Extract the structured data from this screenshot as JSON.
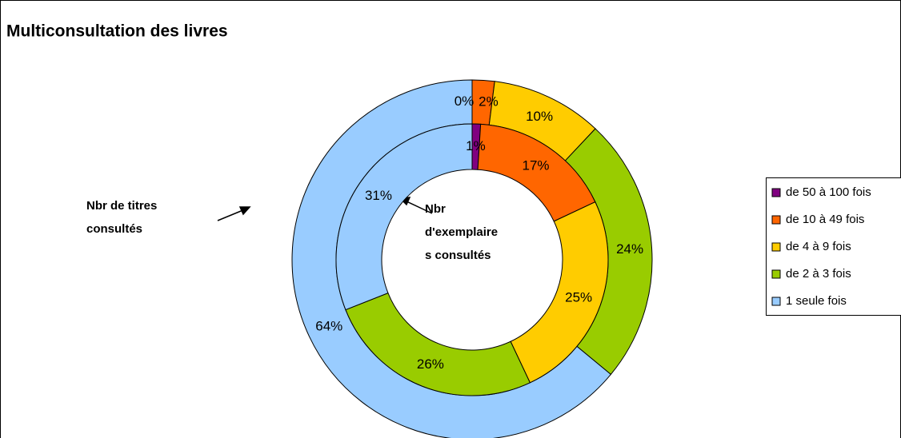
{
  "chart_data": {
    "type": "doughnut",
    "title": "Multiconsultation des livres",
    "categories": [
      "de 50 à 100 fois",
      "de 10 à 49 fois",
      "de 4 à 9 fois",
      "de 2 à 3 fois",
      "1 seule fois"
    ],
    "colors": [
      "#800080",
      "#ff6600",
      "#ffcc00",
      "#99cc00",
      "#99ccff"
    ],
    "series": [
      {
        "ring": "outer",
        "values": [
          0,
          2,
          10,
          24,
          64
        ],
        "value_labels": [
          "0%",
          "2%",
          "10%",
          "24%",
          "64%"
        ]
      },
      {
        "ring": "inner",
        "values": [
          1,
          17,
          25,
          26,
          31
        ],
        "value_labels": [
          "1%",
          "17%",
          "25%",
          "26%",
          "31%"
        ]
      }
    ],
    "annotations": [
      {
        "lines": [
          "Nbr de titres",
          "consultés"
        ]
      },
      {
        "lines": [
          "Nbr",
          "d'exemplaire",
          "s consultés"
        ]
      }
    ],
    "legend": "right"
  }
}
